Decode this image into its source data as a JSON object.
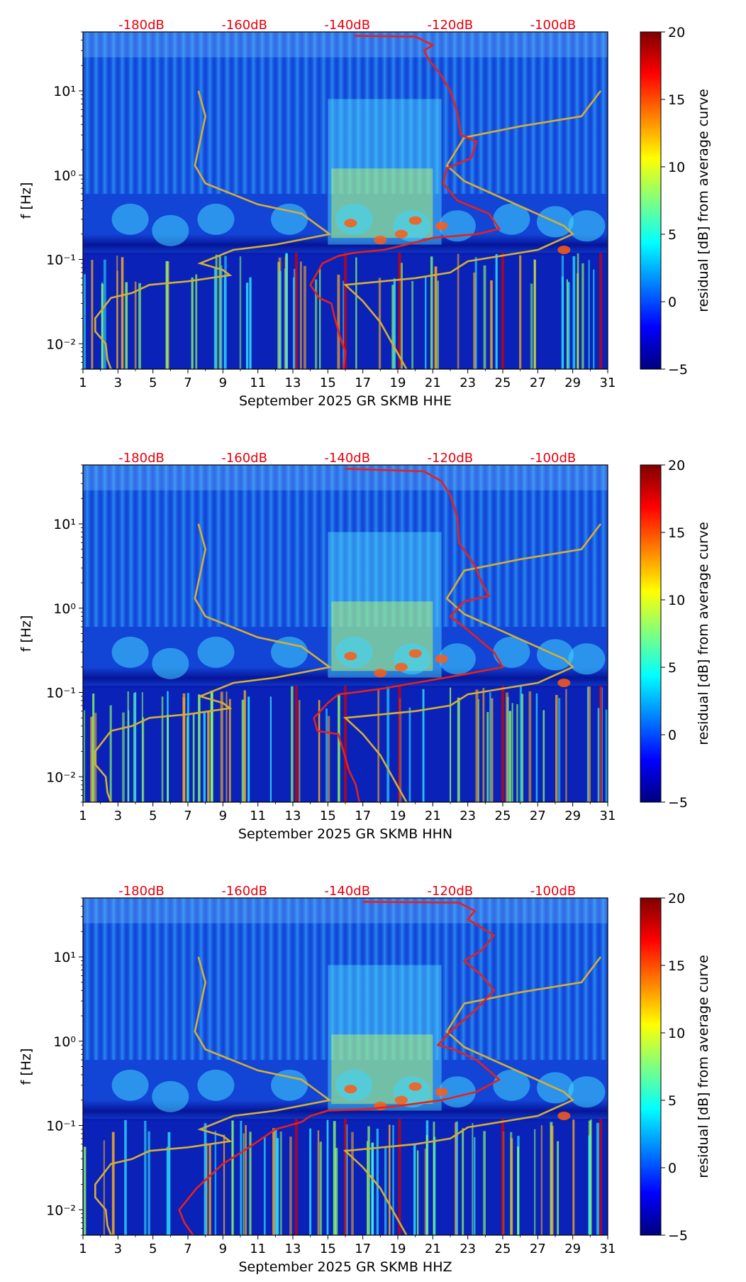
{
  "chart_data": [
    {
      "type": "heatmap",
      "xlabel": "September 2025 GR SKMB  HHE",
      "ylabel": "f [Hz]",
      "x_ticks": [
        "1",
        "3",
        "5",
        "7",
        "9",
        "11",
        "13",
        "15",
        "17",
        "19",
        "21",
        "23",
        "25",
        "27",
        "29",
        "31"
      ],
      "y_ticks": [
        "10⁻²",
        "10⁻¹",
        "10⁰",
        "10¹"
      ],
      "top_axis_ticks": [
        "-180dB",
        "-160dB",
        "-140dB",
        "-120dB",
        "-100dB"
      ],
      "xlim": [
        1,
        31
      ],
      "ylim": [
        0.005,
        50
      ],
      "yscale": "log",
      "colorbar": {
        "label": "residual [dB] from average curve",
        "ticks": [
          "−5",
          "0",
          "5",
          "10",
          "15",
          "20"
        ],
        "range": [
          -5,
          20
        ],
        "cmap": "jet"
      },
      "series": [
        {
          "color": "#d4af37",
          "points": [
            [
              7.6,
              10
            ],
            [
              8.0,
              5
            ],
            [
              7.4,
              1.3
            ],
            [
              8.0,
              0.8
            ],
            [
              11.0,
              0.45
            ],
            [
              13.5,
              0.35
            ],
            [
              15.1,
              0.2
            ],
            [
              12.0,
              0.15
            ],
            [
              9.6,
              0.13
            ],
            [
              7.7,
              0.09
            ],
            [
              9.0,
              0.075
            ],
            [
              9.4,
              0.065
            ],
            [
              7.0,
              0.055
            ],
            [
              4.8,
              0.05
            ],
            [
              3.8,
              0.04
            ],
            [
              2.6,
              0.035
            ],
            [
              1.7,
              0.02
            ],
            [
              1.7,
              0.014
            ],
            [
              2.3,
              0.01
            ],
            [
              2.4,
              0.0065
            ],
            [
              2.6,
              0.005
            ]
          ]
        },
        {
          "color": "#d4af37",
          "points": [
            [
              30.6,
              10
            ],
            [
              29.5,
              5
            ],
            [
              26.0,
              3.8
            ],
            [
              22.8,
              2.8
            ],
            [
              21.8,
              1.3
            ],
            [
              22.8,
              0.85
            ],
            [
              28.5,
              0.25
            ],
            [
              29.0,
              0.2
            ],
            [
              27.0,
              0.13
            ],
            [
              23.0,
              0.095
            ],
            [
              22.0,
              0.07
            ],
            [
              20.0,
              0.06
            ],
            [
              16.0,
              0.05
            ],
            [
              17.0,
              0.032
            ],
            [
              18.0,
              0.018
            ],
            [
              19.5,
              0.005
            ]
          ]
        },
        {
          "color": "#e8201c",
          "points": [
            [
              16.5,
              45
            ],
            [
              20.0,
              44
            ],
            [
              21.0,
              35
            ],
            [
              20.5,
              30
            ],
            [
              20.8,
              23
            ],
            [
              21.5,
              15
            ],
            [
              22.0,
              10
            ],
            [
              22.4,
              5.5
            ],
            [
              22.6,
              3.0
            ],
            [
              23.5,
              2.5
            ],
            [
              23.2,
              1.6
            ],
            [
              21.8,
              1.2
            ],
            [
              21.6,
              0.8
            ],
            [
              22.4,
              0.5
            ],
            [
              24.2,
              0.35
            ],
            [
              24.8,
              0.23
            ],
            [
              23.5,
              0.2
            ],
            [
              21.0,
              0.18
            ],
            [
              19.5,
              0.15
            ],
            [
              18.2,
              0.13
            ],
            [
              16.5,
              0.12
            ],
            [
              15.6,
              0.11
            ],
            [
              14.7,
              0.09
            ],
            [
              14.0,
              0.05
            ],
            [
              14.5,
              0.035
            ],
            [
              15.2,
              0.03
            ],
            [
              15.4,
              0.02
            ],
            [
              15.7,
              0.012
            ],
            [
              16.0,
              0.008
            ],
            [
              15.9,
              0.005
            ]
          ]
        }
      ]
    },
    {
      "type": "heatmap",
      "xlabel": "September 2025 GR SKMB  HHN",
      "ylabel": "f [Hz]",
      "x_ticks": [
        "1",
        "3",
        "5",
        "7",
        "9",
        "11",
        "13",
        "15",
        "17",
        "19",
        "21",
        "23",
        "25",
        "27",
        "29",
        "31"
      ],
      "y_ticks": [
        "10⁻²",
        "10⁻¹",
        "10⁰",
        "10¹"
      ],
      "top_axis_ticks": [
        "-180dB",
        "-160dB",
        "-140dB",
        "-120dB",
        "-100dB"
      ],
      "xlim": [
        1,
        31
      ],
      "ylim": [
        0.005,
        50
      ],
      "yscale": "log",
      "colorbar": {
        "label": "residual [dB] from average curve",
        "ticks": [
          "−5",
          "0",
          "5",
          "10",
          "15",
          "20"
        ],
        "range": [
          -5,
          20
        ],
        "cmap": "jet"
      },
      "series": [
        {
          "color": "#d4af37",
          "points": [
            [
              7.6,
              10
            ],
            [
              8.0,
              5
            ],
            [
              7.4,
              1.3
            ],
            [
              8.0,
              0.8
            ],
            [
              11.0,
              0.45
            ],
            [
              13.5,
              0.35
            ],
            [
              15.1,
              0.2
            ],
            [
              12.0,
              0.15
            ],
            [
              9.6,
              0.13
            ],
            [
              7.7,
              0.09
            ],
            [
              9.0,
              0.075
            ],
            [
              9.4,
              0.065
            ],
            [
              7.0,
              0.055
            ],
            [
              4.8,
              0.05
            ],
            [
              3.8,
              0.04
            ],
            [
              2.6,
              0.035
            ],
            [
              1.7,
              0.02
            ],
            [
              1.7,
              0.014
            ],
            [
              2.3,
              0.01
            ],
            [
              2.4,
              0.0065
            ],
            [
              2.6,
              0.005
            ]
          ]
        },
        {
          "color": "#d4af37",
          "points": [
            [
              30.6,
              10
            ],
            [
              29.5,
              5
            ],
            [
              26.0,
              3.8
            ],
            [
              22.8,
              2.8
            ],
            [
              21.8,
              1.3
            ],
            [
              22.8,
              0.85
            ],
            [
              28.5,
              0.25
            ],
            [
              29.0,
              0.2
            ],
            [
              27.0,
              0.13
            ],
            [
              23.0,
              0.095
            ],
            [
              22.0,
              0.07
            ],
            [
              20.0,
              0.06
            ],
            [
              16.0,
              0.05
            ],
            [
              17.0,
              0.032
            ],
            [
              18.0,
              0.018
            ],
            [
              19.5,
              0.005
            ]
          ]
        },
        {
          "color": "#e8201c",
          "points": [
            [
              16.0,
              45
            ],
            [
              20.5,
              42
            ],
            [
              21.5,
              32
            ],
            [
              22.0,
              22
            ],
            [
              22.4,
              12
            ],
            [
              22.5,
              6
            ],
            [
              23.4,
              3.2
            ],
            [
              23.8,
              2.0
            ],
            [
              24.2,
              1.4
            ],
            [
              22.8,
              1.2
            ],
            [
              22.0,
              0.8
            ],
            [
              23.0,
              0.55
            ],
            [
              24.5,
              0.3
            ],
            [
              25.0,
              0.2
            ],
            [
              22.5,
              0.16
            ],
            [
              20.0,
              0.13
            ],
            [
              18.0,
              0.11
            ],
            [
              16.5,
              0.1
            ],
            [
              15.6,
              0.095
            ],
            [
              15.0,
              0.075
            ],
            [
              14.2,
              0.05
            ],
            [
              14.4,
              0.035
            ],
            [
              15.6,
              0.032
            ],
            [
              15.9,
              0.02
            ],
            [
              16.2,
              0.012
            ],
            [
              16.6,
              0.008
            ],
            [
              16.8,
              0.005
            ]
          ]
        }
      ]
    },
    {
      "type": "heatmap",
      "xlabel": "September 2025 GR SKMB  HHZ",
      "ylabel": "f [Hz]",
      "x_ticks": [
        "1",
        "3",
        "5",
        "7",
        "9",
        "11",
        "13",
        "15",
        "17",
        "19",
        "21",
        "23",
        "25",
        "27",
        "29",
        "31"
      ],
      "y_ticks": [
        "10⁻²",
        "10⁻¹",
        "10⁰",
        "10¹"
      ],
      "top_axis_ticks": [
        "-180dB",
        "-160dB",
        "-140dB",
        "-120dB",
        "-100dB"
      ],
      "xlim": [
        1,
        31
      ],
      "ylim": [
        0.005,
        50
      ],
      "yscale": "log",
      "colorbar": {
        "label": "residual [dB] from average curve",
        "ticks": [
          "−5",
          "0",
          "5",
          "10",
          "15",
          "20"
        ],
        "range": [
          -5,
          20
        ],
        "cmap": "jet"
      },
      "series": [
        {
          "color": "#d4af37",
          "points": [
            [
              7.6,
              10
            ],
            [
              8.0,
              5
            ],
            [
              7.4,
              1.3
            ],
            [
              8.0,
              0.8
            ],
            [
              11.0,
              0.45
            ],
            [
              13.5,
              0.35
            ],
            [
              15.1,
              0.2
            ],
            [
              12.0,
              0.15
            ],
            [
              9.6,
              0.13
            ],
            [
              7.7,
              0.09
            ],
            [
              9.0,
              0.075
            ],
            [
              9.4,
              0.065
            ],
            [
              7.0,
              0.055
            ],
            [
              4.8,
              0.05
            ],
            [
              3.8,
              0.04
            ],
            [
              2.6,
              0.035
            ],
            [
              1.7,
              0.02
            ],
            [
              1.7,
              0.014
            ],
            [
              2.3,
              0.01
            ],
            [
              2.4,
              0.0065
            ],
            [
              2.6,
              0.005
            ]
          ]
        },
        {
          "color": "#d4af37",
          "points": [
            [
              30.6,
              10
            ],
            [
              29.5,
              5
            ],
            [
              26.0,
              3.8
            ],
            [
              22.8,
              2.8
            ],
            [
              21.8,
              1.3
            ],
            [
              22.8,
              0.85
            ],
            [
              28.5,
              0.25
            ],
            [
              29.0,
              0.2
            ],
            [
              27.0,
              0.13
            ],
            [
              23.0,
              0.095
            ],
            [
              22.0,
              0.07
            ],
            [
              20.0,
              0.06
            ],
            [
              16.0,
              0.05
            ],
            [
              17.0,
              0.032
            ],
            [
              18.0,
              0.018
            ],
            [
              19.5,
              0.005
            ]
          ]
        },
        {
          "color": "#e8201c",
          "points": [
            [
              17.0,
              45
            ],
            [
              22.5,
              44
            ],
            [
              23.4,
              35
            ],
            [
              23.0,
              28
            ],
            [
              24.5,
              18
            ],
            [
              23.8,
              12
            ],
            [
              22.8,
              9
            ],
            [
              23.8,
              6
            ],
            [
              24.5,
              4
            ],
            [
              23.4,
              2.3
            ],
            [
              22.0,
              1.3
            ],
            [
              21.3,
              0.9
            ],
            [
              22.2,
              0.8
            ],
            [
              23.5,
              0.6
            ],
            [
              24.8,
              0.35
            ],
            [
              23.5,
              0.25
            ],
            [
              21.5,
              0.2
            ],
            [
              19.0,
              0.17
            ],
            [
              17.0,
              0.155
            ],
            [
              15.0,
              0.15
            ],
            [
              14.0,
              0.13
            ],
            [
              13.5,
              0.11
            ],
            [
              12.0,
              0.09
            ],
            [
              10.5,
              0.055
            ],
            [
              9.0,
              0.035
            ],
            [
              7.5,
              0.018
            ],
            [
              6.5,
              0.01
            ],
            [
              6.8,
              0.007
            ],
            [
              7.3,
              0.005
            ]
          ]
        }
      ]
    }
  ]
}
